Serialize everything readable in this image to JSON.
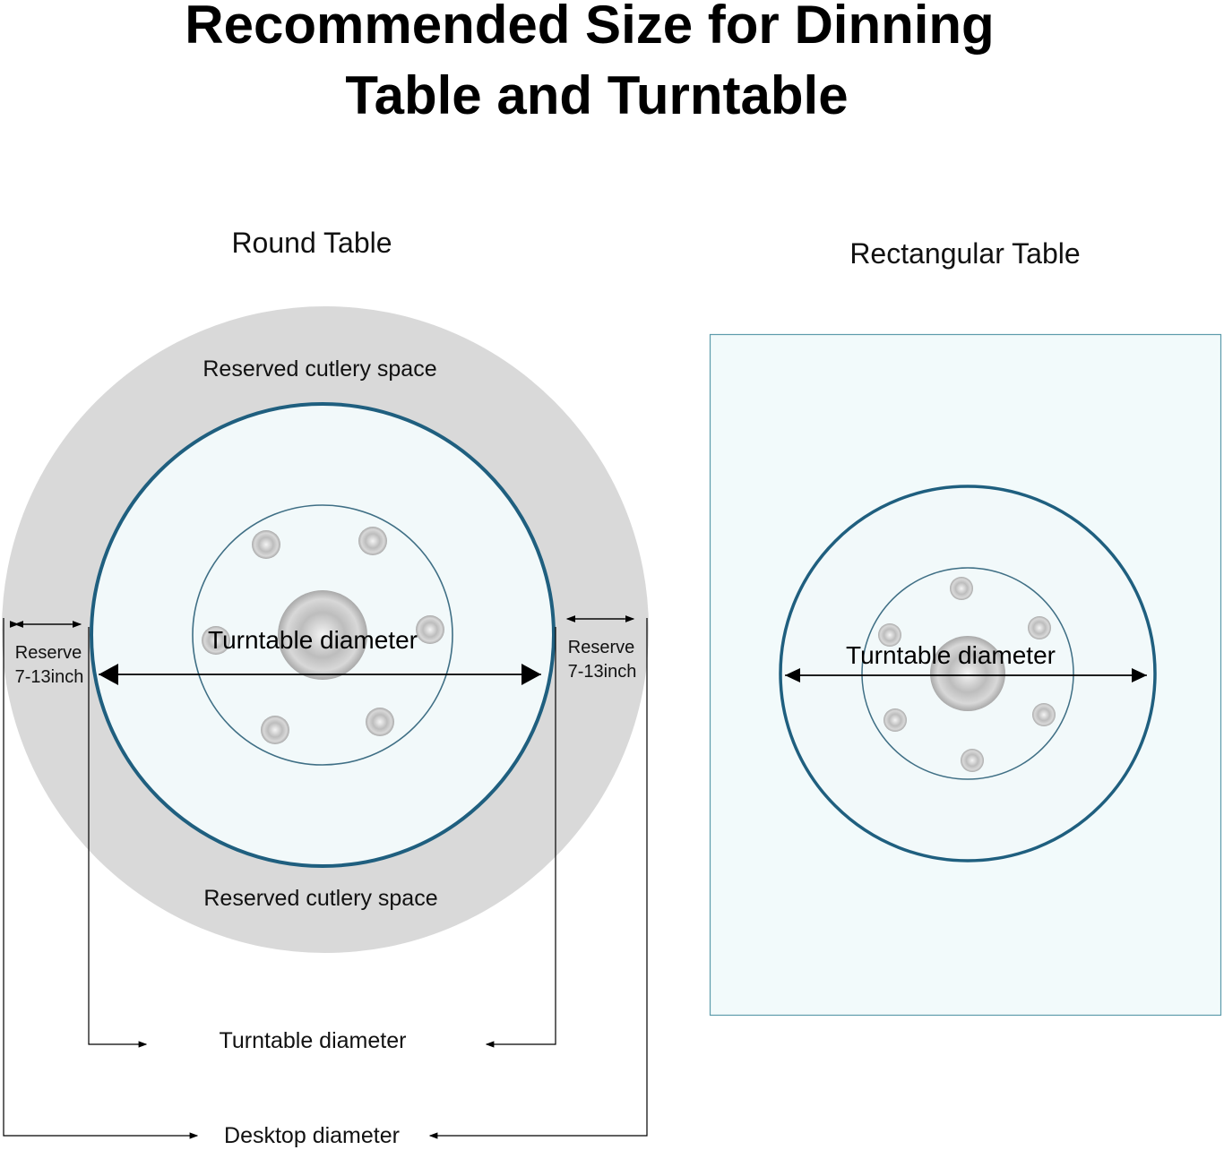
{
  "title_line1": "Recommended Size for Dinning",
  "title_line2": "Table and Turntable",
  "round": {
    "heading": "Round Table",
    "cutlery_top": "Reserved cutlery space",
    "cutlery_bottom": "Reserved cutlery space",
    "turntable_label": "Turntable diameter",
    "reserve_left": [
      "Reserve",
      "7-13inch"
    ],
    "reserve_right": [
      "Reserve",
      "7-13inch"
    ],
    "turntable_dim": "Turntable diameter",
    "desktop_dim": "Desktop diameter"
  },
  "rect": {
    "heading": "Rectangular Table",
    "turntable_label": "Turntable diameter"
  },
  "colors": {
    "reserved_area": "#d9d9d9",
    "glass": "#f2f9fa",
    "rim": "#1f5f7f",
    "rect_border": "#5d9cac"
  }
}
